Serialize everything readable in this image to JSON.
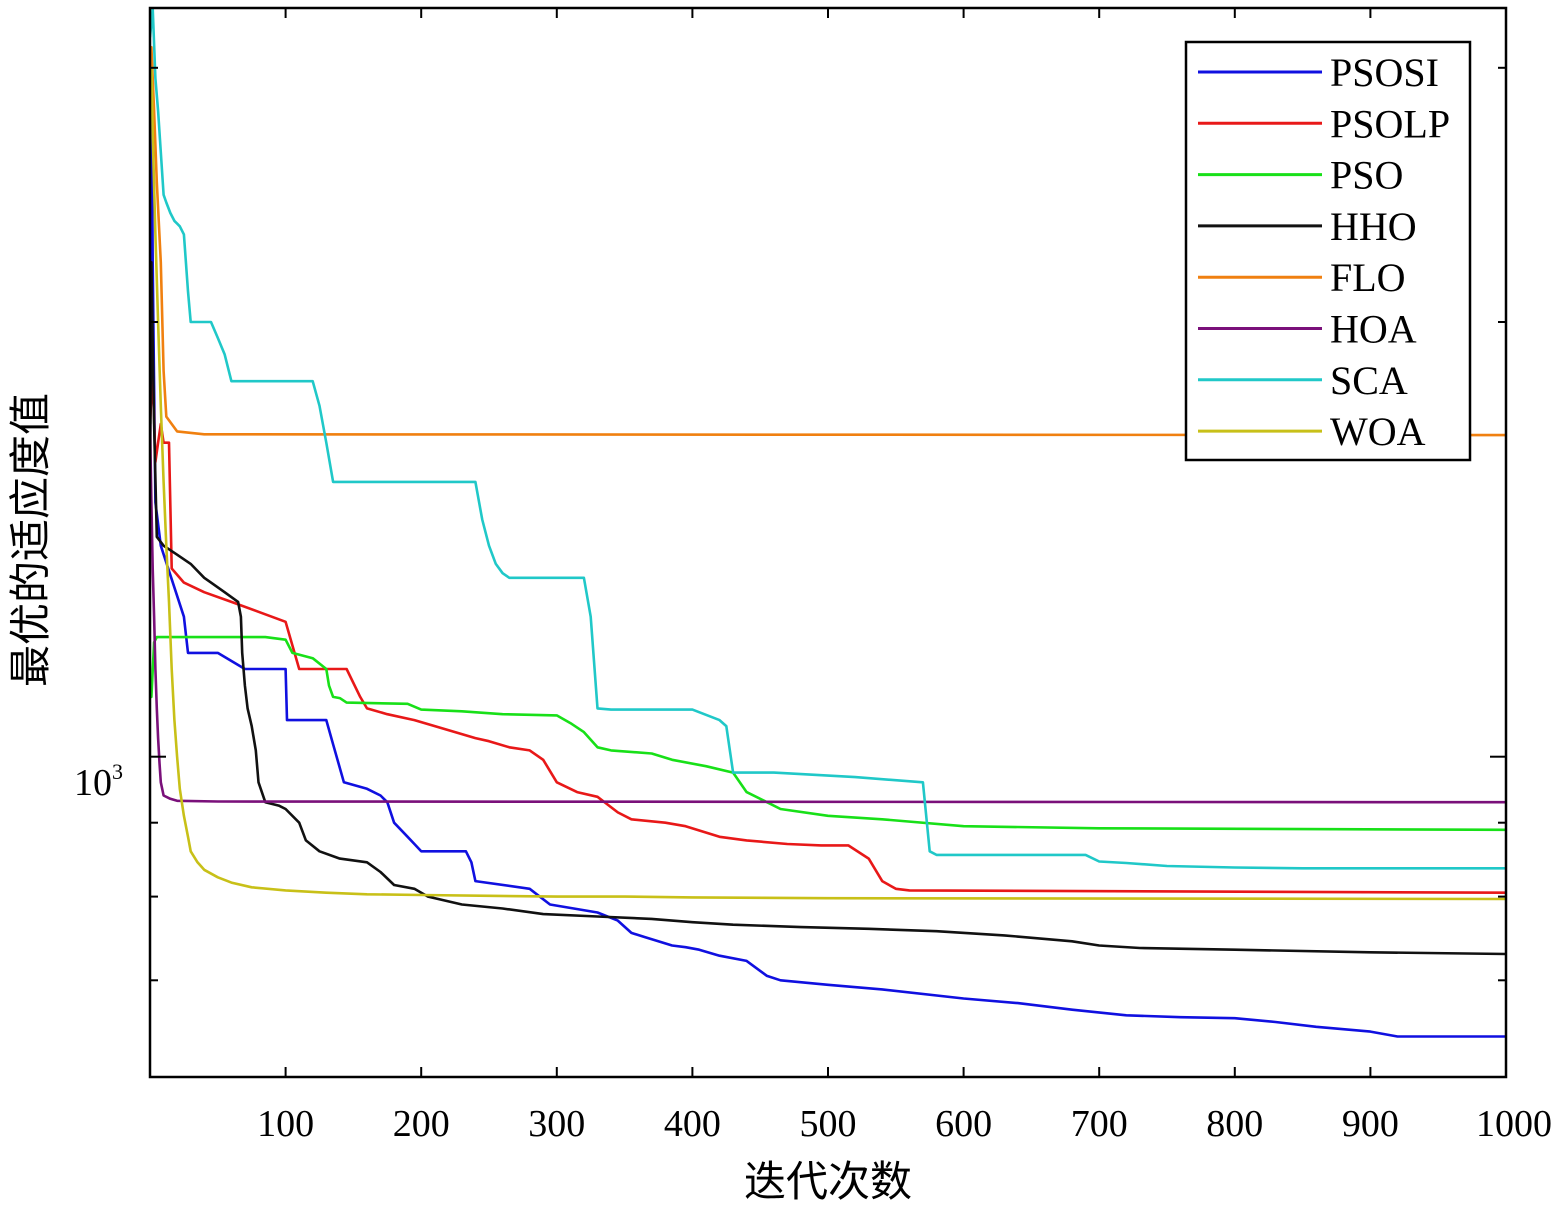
{
  "chart_data": {
    "type": "line",
    "title": "",
    "xlabel": "迭代次数",
    "ylabel": "最优的适应度值",
    "xlim": [
      0,
      1000
    ],
    "ylim": [
      600,
      3300
    ],
    "yscale": "log",
    "x_ticks": [
      100,
      200,
      300,
      400,
      500,
      600,
      700,
      800,
      900,
      1000
    ],
    "x_tick_labels": [
      "100",
      "200",
      "300",
      "400",
      "500",
      "600",
      "700",
      "800",
      "900",
      "1000"
    ],
    "y_tick_label": {
      "base": "10",
      "exponent": "3",
      "value": 1000
    },
    "legend_position": "top-right",
    "series": [
      {
        "name": "PSOSI",
        "color": "#1010e0",
        "points": [
          [
            0,
            1800
          ],
          [
            1,
            3050
          ],
          [
            2,
            2200
          ],
          [
            4,
            1500
          ],
          [
            8,
            1400
          ],
          [
            25,
            1250
          ],
          [
            28,
            1180
          ],
          [
            50,
            1180
          ],
          [
            70,
            1150
          ],
          [
            100,
            1150
          ],
          [
            101,
            1060
          ],
          [
            130,
            1060
          ],
          [
            135,
            1020
          ],
          [
            143,
            960
          ],
          [
            160,
            950
          ],
          [
            170,
            940
          ],
          [
            175,
            930
          ],
          [
            180,
            900
          ],
          [
            190,
            880
          ],
          [
            195,
            870
          ],
          [
            200,
            860
          ],
          [
            233,
            860
          ],
          [
            237,
            845
          ],
          [
            240,
            820
          ],
          [
            280,
            810
          ],
          [
            295,
            790
          ],
          [
            330,
            780
          ],
          [
            345,
            770
          ],
          [
            355,
            755
          ],
          [
            365,
            750
          ],
          [
            385,
            740
          ],
          [
            395,
            738
          ],
          [
            405,
            735
          ],
          [
            420,
            728
          ],
          [
            440,
            722
          ],
          [
            455,
            705
          ],
          [
            465,
            700
          ],
          [
            500,
            695
          ],
          [
            540,
            690
          ],
          [
            600,
            680
          ],
          [
            640,
            675
          ],
          [
            680,
            668
          ],
          [
            720,
            662
          ],
          [
            760,
            660
          ],
          [
            800,
            659
          ],
          [
            830,
            655
          ],
          [
            860,
            650
          ],
          [
            900,
            645
          ],
          [
            920,
            640
          ],
          [
            1000,
            640
          ]
        ]
      },
      {
        "name": "PSOLP",
        "color": "#e81818",
        "points": [
          [
            0,
            1700
          ],
          [
            2,
            1850
          ],
          [
            4,
            1600
          ],
          [
            6,
            1650
          ],
          [
            8,
            1700
          ],
          [
            10,
            1650
          ],
          [
            12,
            1650
          ],
          [
            14,
            1650
          ],
          [
            16,
            1350
          ],
          [
            25,
            1320
          ],
          [
            40,
            1300
          ],
          [
            60,
            1280
          ],
          [
            80,
            1260
          ],
          [
            100,
            1240
          ],
          [
            110,
            1150
          ],
          [
            145,
            1150
          ],
          [
            155,
            1100
          ],
          [
            160,
            1080
          ],
          [
            175,
            1070
          ],
          [
            195,
            1060
          ],
          [
            210,
            1050
          ],
          [
            225,
            1040
          ],
          [
            240,
            1030
          ],
          [
            250,
            1025
          ],
          [
            265,
            1015
          ],
          [
            280,
            1010
          ],
          [
            290,
            995
          ],
          [
            300,
            960
          ],
          [
            315,
            945
          ],
          [
            330,
            938
          ],
          [
            345,
            915
          ],
          [
            355,
            905
          ],
          [
            380,
            900
          ],
          [
            395,
            895
          ],
          [
            420,
            880
          ],
          [
            440,
            875
          ],
          [
            470,
            870
          ],
          [
            495,
            868
          ],
          [
            515,
            868
          ],
          [
            530,
            850
          ],
          [
            540,
            820
          ],
          [
            550,
            810
          ],
          [
            560,
            808
          ],
          [
            1000,
            805
          ]
        ]
      },
      {
        "name": "PSO",
        "color": "#18e018",
        "points": [
          [
            0,
            1100
          ],
          [
            1,
            1100
          ],
          [
            3,
            1200
          ],
          [
            5,
            1210
          ],
          [
            85,
            1210
          ],
          [
            100,
            1205
          ],
          [
            105,
            1180
          ],
          [
            120,
            1170
          ],
          [
            130,
            1150
          ],
          [
            132,
            1120
          ],
          [
            135,
            1100
          ],
          [
            140,
            1098
          ],
          [
            145,
            1090
          ],
          [
            190,
            1088
          ],
          [
            200,
            1078
          ],
          [
            230,
            1075
          ],
          [
            260,
            1070
          ],
          [
            300,
            1068
          ],
          [
            310,
            1055
          ],
          [
            320,
            1040
          ],
          [
            330,
            1015
          ],
          [
            340,
            1010
          ],
          [
            370,
            1005
          ],
          [
            385,
            995
          ],
          [
            410,
            985
          ],
          [
            430,
            975
          ],
          [
            440,
            945
          ],
          [
            455,
            930
          ],
          [
            465,
            920
          ],
          [
            500,
            910
          ],
          [
            540,
            905
          ],
          [
            600,
            895
          ],
          [
            700,
            892
          ],
          [
            1000,
            890
          ]
        ]
      },
      {
        "name": "HHO",
        "color": "#111111",
        "points": [
          [
            0,
            1500
          ],
          [
            1,
            2200
          ],
          [
            3,
            1700
          ],
          [
            5,
            1420
          ],
          [
            10,
            1400
          ],
          [
            20,
            1380
          ],
          [
            30,
            1360
          ],
          [
            40,
            1330
          ],
          [
            45,
            1320
          ],
          [
            55,
            1300
          ],
          [
            65,
            1280
          ],
          [
            67,
            1250
          ],
          [
            68,
            1180
          ],
          [
            70,
            1120
          ],
          [
            72,
            1080
          ],
          [
            75,
            1050
          ],
          [
            78,
            1010
          ],
          [
            80,
            960
          ],
          [
            85,
            930
          ],
          [
            95,
            925
          ],
          [
            100,
            920
          ],
          [
            110,
            900
          ],
          [
            115,
            875
          ],
          [
            125,
            860
          ],
          [
            140,
            850
          ],
          [
            160,
            845
          ],
          [
            170,
            832
          ],
          [
            180,
            815
          ],
          [
            195,
            810
          ],
          [
            205,
            800
          ],
          [
            230,
            790
          ],
          [
            260,
            785
          ],
          [
            290,
            778
          ],
          [
            330,
            775
          ],
          [
            370,
            772
          ],
          [
            400,
            768
          ],
          [
            430,
            765
          ],
          [
            480,
            762
          ],
          [
            530,
            760
          ],
          [
            580,
            757
          ],
          [
            630,
            752
          ],
          [
            680,
            745
          ],
          [
            700,
            740
          ],
          [
            730,
            737
          ],
          [
            800,
            735
          ],
          [
            900,
            732
          ],
          [
            1000,
            730
          ]
        ]
      },
      {
        "name": "FLO",
        "color": "#f08010",
        "points": [
          [
            0,
            2900
          ],
          [
            1,
            3100
          ],
          [
            3,
            2800
          ],
          [
            5,
            2500
          ],
          [
            8,
            2200
          ],
          [
            10,
            1850
          ],
          [
            12,
            1720
          ],
          [
            20,
            1680
          ],
          [
            40,
            1672
          ],
          [
            1000,
            1670
          ]
        ]
      },
      {
        "name": "HOA",
        "color": "#7a107a",
        "points": [
          [
            0,
            1700
          ],
          [
            1,
            1500
          ],
          [
            2,
            1350
          ],
          [
            3,
            1250
          ],
          [
            4,
            1150
          ],
          [
            5,
            1080
          ],
          [
            6,
            1030
          ],
          [
            7,
            990
          ],
          [
            8,
            960
          ],
          [
            10,
            940
          ],
          [
            15,
            935
          ],
          [
            20,
            932
          ],
          [
            50,
            931
          ],
          [
            1000,
            930
          ]
        ]
      },
      {
        "name": "SCA",
        "color": "#20c8c8",
        "points": [
          [
            0,
            3150
          ],
          [
            2,
            3300
          ],
          [
            4,
            2950
          ],
          [
            6,
            2800
          ],
          [
            10,
            2450
          ],
          [
            12,
            2420
          ],
          [
            15,
            2380
          ],
          [
            18,
            2350
          ],
          [
            20,
            2340
          ],
          [
            22,
            2330
          ],
          [
            25,
            2300
          ],
          [
            28,
            2100
          ],
          [
            30,
            2000
          ],
          [
            35,
            2000
          ],
          [
            40,
            2000
          ],
          [
            45,
            2000
          ],
          [
            50,
            1950
          ],
          [
            55,
            1900
          ],
          [
            60,
            1820
          ],
          [
            80,
            1820
          ],
          [
            100,
            1820
          ],
          [
            105,
            1820
          ],
          [
            120,
            1820
          ],
          [
            125,
            1750
          ],
          [
            130,
            1650
          ],
          [
            135,
            1550
          ],
          [
            150,
            1550
          ],
          [
            200,
            1550
          ],
          [
            240,
            1550
          ],
          [
            245,
            1460
          ],
          [
            250,
            1400
          ],
          [
            255,
            1360
          ],
          [
            260,
            1340
          ],
          [
            265,
            1330
          ],
          [
            320,
            1330
          ],
          [
            325,
            1250
          ],
          [
            330,
            1080
          ],
          [
            340,
            1078
          ],
          [
            400,
            1078
          ],
          [
            420,
            1060
          ],
          [
            425,
            1050
          ],
          [
            430,
            975
          ],
          [
            460,
            975
          ],
          [
            520,
            968
          ],
          [
            570,
            960
          ],
          [
            575,
            860
          ],
          [
            580,
            855
          ],
          [
            620,
            855
          ],
          [
            690,
            855
          ],
          [
            700,
            846
          ],
          [
            720,
            844
          ],
          [
            750,
            840
          ],
          [
            800,
            838
          ],
          [
            850,
            837
          ],
          [
            1000,
            837
          ]
        ]
      },
      {
        "name": "WOA",
        "color": "#c8c018",
        "points": [
          [
            0,
            2800
          ],
          [
            1,
            3000
          ],
          [
            2,
            2700
          ],
          [
            4,
            2300
          ],
          [
            6,
            2000
          ],
          [
            8,
            1750
          ],
          [
            10,
            1550
          ],
          [
            12,
            1400
          ],
          [
            14,
            1280
          ],
          [
            16,
            1150
          ],
          [
            18,
            1060
          ],
          [
            20,
            1000
          ],
          [
            22,
            950
          ],
          [
            25,
            910
          ],
          [
            28,
            880
          ],
          [
            30,
            860
          ],
          [
            35,
            845
          ],
          [
            40,
            835
          ],
          [
            50,
            825
          ],
          [
            60,
            818
          ],
          [
            75,
            812
          ],
          [
            100,
            808
          ],
          [
            130,
            805
          ],
          [
            160,
            803
          ],
          [
            200,
            802
          ],
          [
            250,
            801
          ],
          [
            300,
            800
          ],
          [
            350,
            800
          ],
          [
            400,
            799
          ],
          [
            500,
            798
          ],
          [
            1000,
            797
          ]
        ]
      }
    ]
  }
}
